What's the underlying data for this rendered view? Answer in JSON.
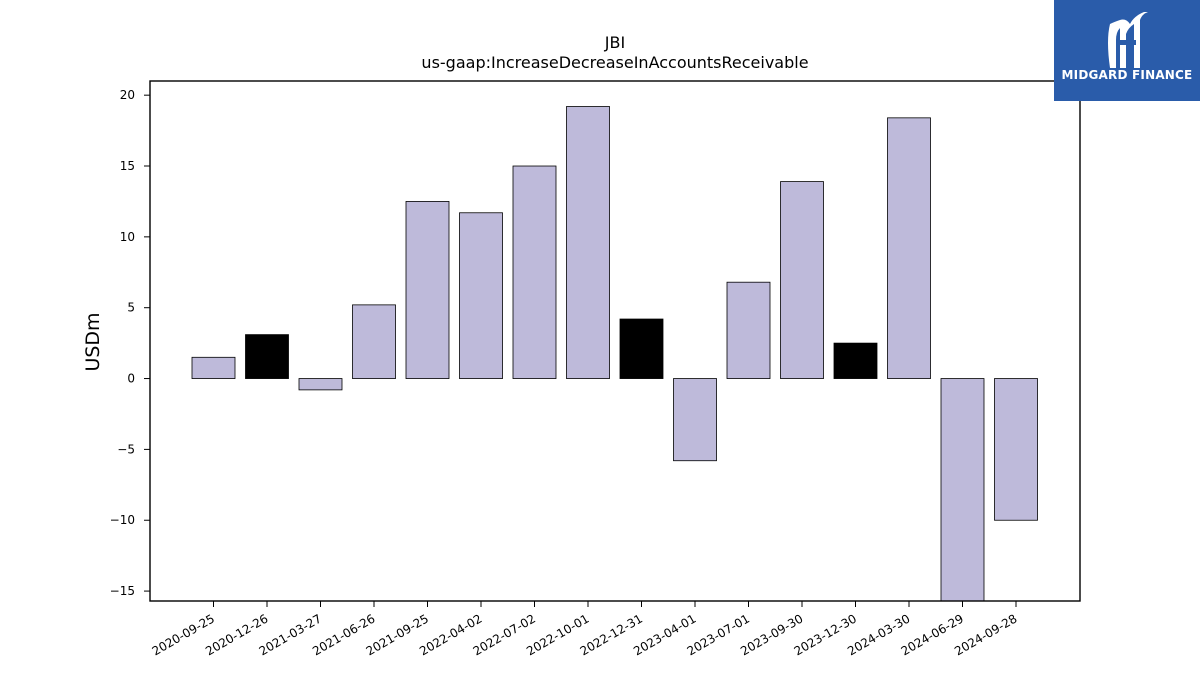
{
  "chart_data": {
    "type": "bar",
    "title": "JBI",
    "subtitle": "us-gaap:IncreaseDecreaseInAccountsReceivable",
    "xlabel": "",
    "ylabel": "USDm",
    "ylim": [
      -15.7,
      21
    ],
    "yticks": [
      -15,
      -10,
      -5,
      0,
      5,
      10,
      15,
      20
    ],
    "ytick_labels": [
      "−15",
      "−10",
      "−5",
      "0",
      "5",
      "10",
      "15",
      "20"
    ],
    "categories": [
      "2020-09-25",
      "2020-12-26",
      "2021-03-27",
      "2021-06-26",
      "2021-09-25",
      "2022-04-02",
      "2022-07-02",
      "2022-10-01",
      "2022-12-31",
      "2023-04-01",
      "2023-07-01",
      "2023-09-30",
      "2023-12-30",
      "2024-03-30",
      "2024-06-29",
      "2024-09-28"
    ],
    "values": [
      1.5,
      3.1,
      -0.8,
      5.2,
      12.5,
      11.7,
      15.0,
      19.2,
      4.2,
      -5.8,
      6.8,
      13.9,
      2.5,
      18.4,
      -15.7,
      -10.0
    ],
    "highlighted": [
      false,
      true,
      false,
      false,
      false,
      false,
      false,
      false,
      true,
      false,
      false,
      false,
      true,
      false,
      false,
      false
    ],
    "colors": {
      "bar": "#bebada",
      "highlight": "#000000",
      "edge": "#000000"
    },
    "grid": false,
    "legend": "none"
  },
  "logo": {
    "text": "MIDGARD FINANCE",
    "background": "#2a5caa"
  }
}
